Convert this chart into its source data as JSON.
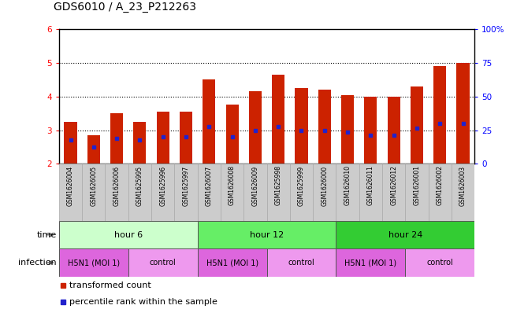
{
  "title": "GDS6010 / A_23_P212263",
  "samples": [
    "GSM1626004",
    "GSM1626005",
    "GSM1626006",
    "GSM1625995",
    "GSM1625996",
    "GSM1625997",
    "GSM1626007",
    "GSM1626008",
    "GSM1626009",
    "GSM1625998",
    "GSM1625999",
    "GSM1626000",
    "GSM1626010",
    "GSM1626011",
    "GSM1626012",
    "GSM1626001",
    "GSM1626002",
    "GSM1626003"
  ],
  "bar_values": [
    3.25,
    2.85,
    3.5,
    3.25,
    3.55,
    3.55,
    4.5,
    3.75,
    4.15,
    4.65,
    4.25,
    4.2,
    4.05,
    4.0,
    4.0,
    4.3,
    4.9,
    5.0
  ],
  "blue_values": [
    2.7,
    2.5,
    2.75,
    2.7,
    2.8,
    2.8,
    3.1,
    2.8,
    3.0,
    3.1,
    3.0,
    3.0,
    2.95,
    2.85,
    2.85,
    3.05,
    3.2,
    3.2
  ],
  "bar_color": "#cc2200",
  "blue_color": "#2222cc",
  "bar_bottom": 2.0,
  "ylim_left": [
    2.0,
    6.0
  ],
  "ylim_right": [
    0,
    100
  ],
  "yticks_left": [
    2,
    3,
    4,
    5,
    6
  ],
  "yticks_right": [
    0,
    25,
    50,
    75,
    100
  ],
  "ytick_labels_right": [
    "0",
    "25",
    "50",
    "75",
    "100%"
  ],
  "grid_values": [
    3.0,
    4.0,
    5.0
  ],
  "time_groups": [
    {
      "label": "hour 6",
      "start": 0,
      "end": 5,
      "color": "#ccffcc"
    },
    {
      "label": "hour 12",
      "start": 6,
      "end": 11,
      "color": "#66ee66"
    },
    {
      "label": "hour 24",
      "start": 12,
      "end": 17,
      "color": "#33cc33"
    }
  ],
  "infection_groups": [
    {
      "label": "H5N1 (MOI 1)",
      "start": 0,
      "end": 2,
      "color": "#dd66dd"
    },
    {
      "label": "control",
      "start": 3,
      "end": 5,
      "color": "#ee99ee"
    },
    {
      "label": "H5N1 (MOI 1)",
      "start": 6,
      "end": 8,
      "color": "#dd66dd"
    },
    {
      "label": "control",
      "start": 9,
      "end": 11,
      "color": "#ee99ee"
    },
    {
      "label": "H5N1 (MOI 1)",
      "start": 12,
      "end": 14,
      "color": "#dd66dd"
    },
    {
      "label": "control",
      "start": 15,
      "end": 17,
      "color": "#ee99ee"
    }
  ],
  "legend_red_label": "transformed count",
  "legend_blue_label": "percentile rank within the sample",
  "background_color": "#ffffff",
  "bar_width": 0.55,
  "title_fontsize": 10,
  "tick_fontsize": 7.5,
  "sample_fontsize": 5.5,
  "row_fontsize": 8,
  "legend_fontsize": 8
}
